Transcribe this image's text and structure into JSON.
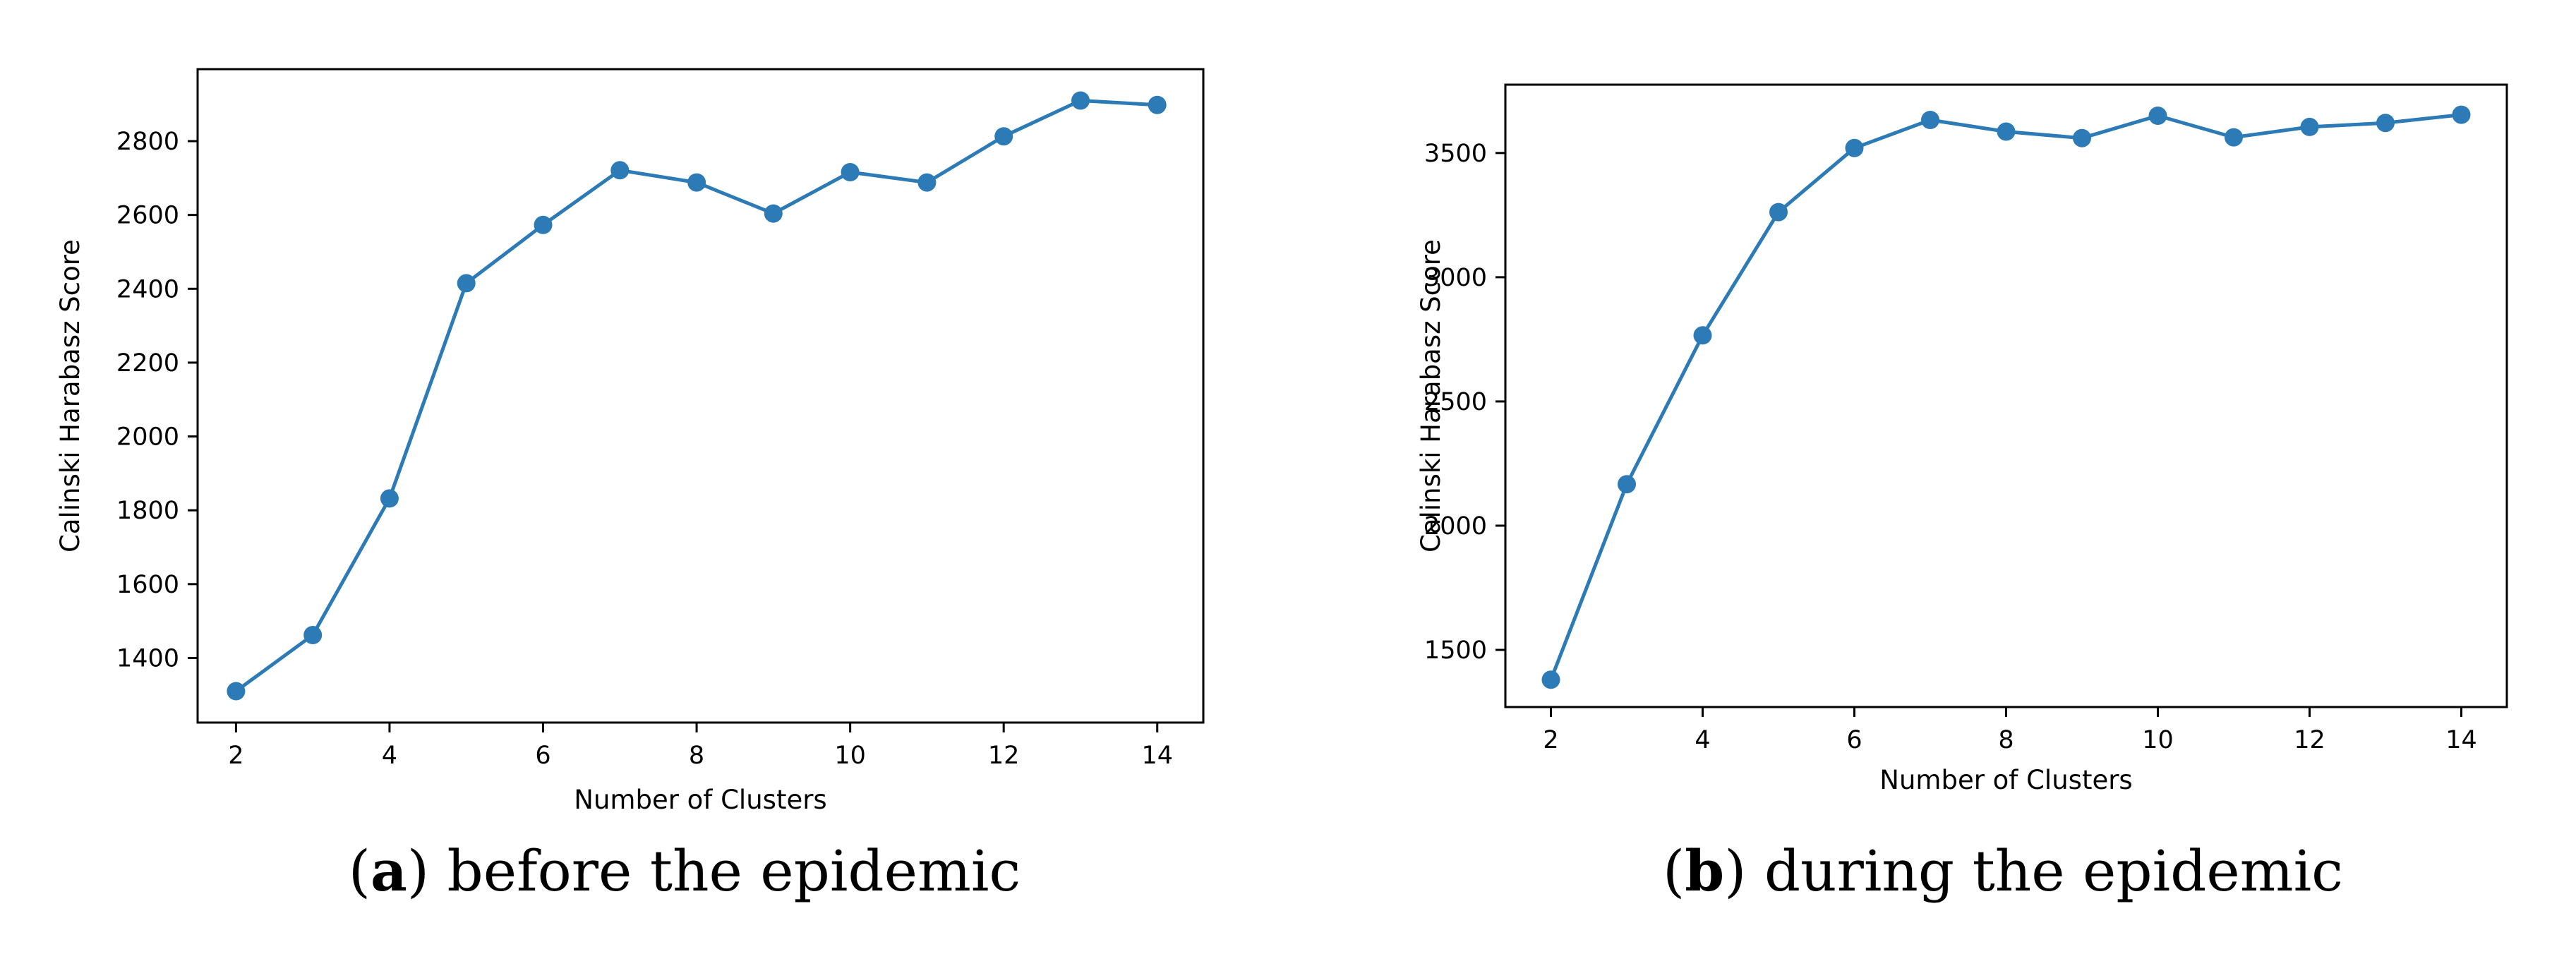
{
  "colors": {
    "series": "#2c7bb6",
    "axis": "#000000",
    "background": "#ffffff"
  },
  "chart_data": [
    {
      "type": "line",
      "title": "",
      "xlabel": "Number of Clusters",
      "ylabel": "Calinski Harabasz Score",
      "x": [
        2,
        3,
        4,
        5,
        6,
        7,
        8,
        9,
        10,
        11,
        12,
        13,
        14
      ],
      "series": [
        {
          "name": "before the epidemic",
          "values": [
            1310,
            1462,
            1832,
            2415,
            2573,
            2721,
            2688,
            2604,
            2716,
            2688,
            2813,
            2910,
            2898
          ]
        }
      ],
      "xlim": [
        1.5,
        14.6
      ],
      "ylim": [
        1225,
        2995
      ],
      "xticks": [
        2,
        4,
        6,
        8,
        10,
        12,
        14
      ],
      "yticks": [
        1400,
        1600,
        1800,
        2000,
        2200,
        2400,
        2600,
        2800
      ],
      "grid": false,
      "caption": {
        "letter": "a",
        "open": "(",
        "close": ")",
        "text": " before the epidemic"
      }
    },
    {
      "type": "line",
      "title": "",
      "xlabel": "Number of Clusters",
      "ylabel": "Calinski Harabasz Score",
      "x": [
        2,
        3,
        4,
        5,
        6,
        7,
        8,
        9,
        10,
        11,
        12,
        13,
        14
      ],
      "series": [
        {
          "name": "during the epidemic",
          "values": [
            1380,
            2167,
            2766,
            3262,
            3520,
            3633,
            3586,
            3560,
            3650,
            3563,
            3605,
            3621,
            3654
          ]
        }
      ],
      "xlim": [
        1.4,
        14.6
      ],
      "ylim": [
        1270,
        3775
      ],
      "xticks": [
        2,
        4,
        6,
        8,
        10,
        12,
        14
      ],
      "yticks": [
        1500,
        2000,
        2500,
        3000,
        3500
      ],
      "grid": false,
      "caption": {
        "letter": "b",
        "open": "(",
        "close": ")",
        "text": " during the epidemic"
      }
    }
  ]
}
